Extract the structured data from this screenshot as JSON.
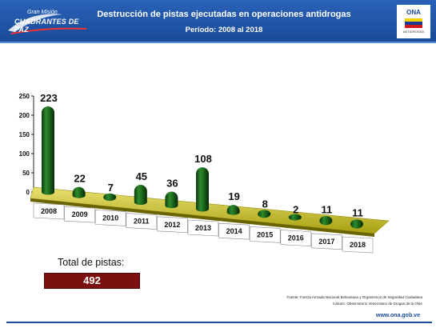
{
  "header": {
    "logo_small": "Gran Misión",
    "logo_big": "CUADRANTES DE PAZ",
    "title": "Destrucción de pistas ejecutadas en operaciones antidrogas",
    "subtitle": "Período: 2008 al 2018",
    "right_logo": "ONA",
    "right_logo_tag": "ANTIDROGAS",
    "colors": {
      "header_blue": "#1a4a98",
      "bar_green": "#1e6b1e",
      "floor_yellow": "#c8c020",
      "total_red": "#7a1010"
    }
  },
  "chart_data": {
    "type": "bar",
    "title": "Destrucción de pistas ejecutadas en operaciones antidrogas",
    "subtitle": "Período: 2008 al 2018",
    "categories": [
      "2008",
      "2009",
      "2010",
      "2011",
      "2012",
      "2013",
      "2014",
      "2015",
      "2016",
      "2017",
      "2018"
    ],
    "values": [
      223,
      22,
      7,
      45,
      36,
      108,
      19,
      8,
      2,
      11,
      11
    ],
    "data_labels": [
      "223",
      "22",
      "7",
      "45",
      "36",
      "108",
      "19",
      "8",
      "2",
      "11",
      "11"
    ],
    "yticks": [
      "0",
      "50",
      "100",
      "150",
      "200",
      "250"
    ],
    "ylim": [
      0,
      250
    ],
    "xlabel": "",
    "ylabel": "",
    "grid": false,
    "style": "3d-cylinder"
  },
  "summary": {
    "total_label": "Total de pistas:",
    "total_value": "492"
  },
  "footer": {
    "source": "Fuente: Fuerza Armada Nacional Bolivariana y Organismos de Seguridad Ciudadana",
    "calc": "Cálculo: Observatorio Venezolano de Drogas de la ONA",
    "url": "www.ona.gob.ve"
  }
}
